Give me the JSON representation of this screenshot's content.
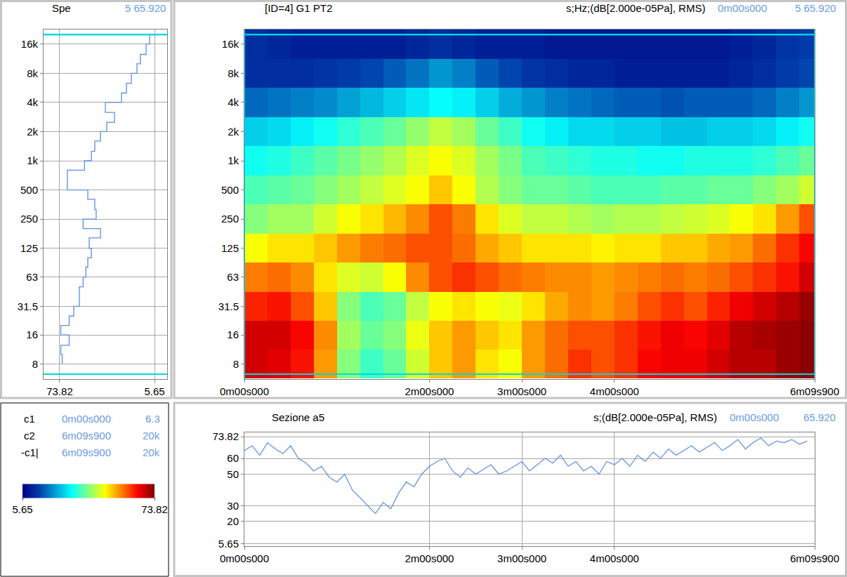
{
  "chart_data": [
    {
      "type": "line",
      "title": "Spe",
      "annotations": [
        "5 65.920"
      ],
      "y": [
        8,
        10,
        12.5,
        16,
        20,
        25,
        31.5,
        40,
        50,
        63,
        80,
        100,
        125,
        160,
        200,
        250,
        315,
        400,
        500,
        630,
        800,
        1000,
        1250,
        1600,
        2000,
        2500,
        3150,
        4000,
        5000,
        6300,
        8000,
        10000,
        12500,
        16000,
        20000
      ],
      "values": [
        72,
        73,
        67,
        73,
        67,
        63.7,
        59.7,
        59.7,
        57,
        55,
        53.6,
        51,
        52.6,
        44.5,
        57,
        47.6,
        48.6,
        53.6,
        68.3,
        68.3,
        56,
        51,
        48.6,
        44.5,
        40,
        34.4,
        41,
        29.4,
        25.8,
        22.3,
        18.3,
        15.8,
        11.7,
        9.2,
        5.7
      ],
      "color": "#5b8ee6",
      "line_style": "step",
      "xlim": [
        85.4,
        -3.4
      ],
      "xticks": [
        73.82,
        5.65
      ],
      "ylim": [
        5.6,
        22600
      ],
      "yticks": [
        8,
        16,
        31.5,
        63,
        125,
        250,
        500,
        {
          "value": 1000,
          "label": "1k"
        },
        {
          "value": 2000,
          "label": "2k"
        },
        {
          "value": 4000,
          "label": "4k"
        },
        {
          "value": 8000,
          "label": "8k"
        },
        {
          "value": 16000,
          "label": "16k"
        }
      ],
      "log": "y",
      "grid": true
    },
    {
      "type": "heatmap",
      "title": "[ID=4] G1 PT2",
      "subtitle": "s;Hz;(dB[2.000e-05Pa], RMS)",
      "annotations": [
        "0m00s000",
        "5 65.920"
      ],
      "x": [
        7.5,
        22.5,
        37.5,
        52.5,
        67.5,
        82.5,
        97.5,
        112.5,
        127.5,
        142.5,
        157.5,
        172.5,
        187.5,
        202.5,
        217.5,
        232.5,
        247.5,
        262.5,
        277.5,
        292.5,
        307.5,
        322.5,
        337.5,
        352.5,
        367.5
      ],
      "y": [
        8,
        16,
        31.5,
        63,
        125,
        250,
        500,
        1000,
        2000,
        4000,
        8000,
        16000
      ],
      "z": [
        [
          68,
          67,
          64,
          55,
          40,
          35,
          38,
          45,
          52,
          55,
          50,
          48,
          55,
          58,
          62,
          60,
          62,
          65,
          66,
          66,
          68,
          70,
          70,
          72,
          73
        ],
        [
          68,
          68,
          65,
          56,
          42,
          38,
          40,
          47,
          52,
          55,
          52,
          50,
          55,
          58,
          60,
          60,
          62,
          64,
          66,
          65,
          67,
          70,
          71,
          72,
          73
        ],
        [
          63,
          64,
          60,
          52,
          40,
          36,
          38,
          44,
          48,
          50,
          48,
          47,
          50,
          54,
          56,
          55,
          57,
          60,
          62,
          60,
          63,
          66,
          68,
          70,
          72
        ],
        [
          57,
          58,
          56,
          50,
          46,
          45,
          48,
          56,
          60,
          62,
          60,
          58,
          57,
          56,
          56,
          55,
          56,
          57,
          58,
          57,
          58,
          60,
          62,
          64,
          68
        ],
        [
          48,
          50,
          50,
          52,
          55,
          57,
          58,
          60,
          60,
          58,
          54,
          52,
          50,
          50,
          50,
          49,
          50,
          50,
          52,
          52,
          54,
          55,
          58,
          62,
          65
        ],
        [
          40,
          42,
          42,
          45,
          48,
          50,
          53,
          56,
          60,
          57,
          50,
          46,
          44,
          44,
          43,
          42,
          43,
          43,
          44,
          45,
          46,
          48,
          50,
          55,
          60
        ],
        [
          36,
          37,
          38,
          40,
          42,
          44,
          46,
          48,
          52,
          48,
          43,
          40,
          38,
          38,
          37,
          36,
          36,
          36,
          37,
          37,
          38,
          38,
          40,
          42,
          45
        ],
        [
          32,
          33,
          35,
          37,
          39,
          41,
          43,
          46,
          48,
          46,
          42,
          39,
          36,
          35,
          34,
          33,
          33,
          32,
          32,
          33,
          33,
          33,
          34,
          36,
          38
        ],
        [
          27,
          28,
          30,
          32,
          34,
          36,
          38,
          41,
          44,
          42,
          38,
          35,
          32,
          30,
          28,
          28,
          27,
          27,
          26,
          26,
          27,
          27,
          28,
          30,
          32
        ],
        [
          18,
          19,
          20,
          21,
          23,
          25,
          27,
          29,
          31,
          30,
          27,
          24,
          22,
          20,
          19,
          18,
          17,
          17,
          16,
          17,
          17,
          17,
          18,
          20,
          22
        ],
        [
          12,
          12,
          12,
          13,
          14,
          15,
          17,
          19,
          22,
          20,
          17,
          15,
          13,
          12,
          11,
          11,
          10,
          10,
          10,
          10,
          10,
          11,
          12,
          14,
          15
        ],
        [
          12,
          11,
          10,
          10,
          10,
          10,
          10,
          11,
          12,
          11,
          10,
          10,
          10,
          9,
          9,
          9,
          9,
          9,
          9,
          9,
          9,
          10,
          11,
          13,
          14
        ]
      ],
      "zlim": [
        5.65,
        73.82
      ],
      "zticks": [
        5.65,
        73.82
      ],
      "xlim": [
        0,
        369.9
      ],
      "xticks": [
        {
          "value": 0,
          "label": "0m00s000"
        },
        {
          "value": 120,
          "label": "2m00s000"
        },
        {
          "value": 180,
          "label": "3m00s000"
        },
        {
          "value": 240,
          "label": "4m00s000"
        },
        {
          "value": 369.9,
          "label": "6m09s900"
        }
      ],
      "ylim": [
        5.6,
        22600
      ],
      "yticks": [
        8,
        16,
        31.5,
        63,
        125,
        250,
        500,
        {
          "value": 1000,
          "label": "1k"
        },
        {
          "value": 2000,
          "label": "2k"
        },
        {
          "value": 4000,
          "label": "4k"
        },
        {
          "value": 8000,
          "label": "8k"
        },
        {
          "value": 16000,
          "label": "16k"
        }
      ],
      "log": "y",
      "grid": false,
      "cursors": [
        {
          "name": "c1",
          "time": {
            "value": 0,
            "label": "0m00s000"
          },
          "freq": {
            "value": 6.3,
            "label": "6.3"
          }
        },
        {
          "name": "c2",
          "time": {
            "value": 369.9,
            "label": "6m09s900"
          },
          "freq": {
            "value": 20000,
            "label": "20k"
          }
        },
        {
          "name": "-c1|",
          "time": {
            "value": 369.9,
            "label": "6m09s900"
          },
          "freq": {
            "value": 20000,
            "label": "20k"
          }
        }
      ]
    },
    {
      "type": "line",
      "title": "Sezione a5",
      "subtitle": "s;(dB[2.000e-05Pa], RMS)",
      "annotations": [
        "0m00s000",
        "65.920"
      ],
      "x": [
        0,
        5,
        10,
        15,
        20,
        25,
        30,
        35,
        40,
        45,
        50,
        55,
        60,
        65,
        70,
        75,
        80,
        85,
        90,
        95,
        100,
        105,
        110,
        115,
        120,
        125,
        130,
        135,
        140,
        145,
        150,
        155,
        160,
        165,
        170,
        175,
        180,
        185,
        190,
        195,
        200,
        205,
        210,
        215,
        220,
        225,
        230,
        235,
        240,
        245,
        250,
        255,
        260,
        265,
        270,
        275,
        280,
        285,
        290,
        295,
        300,
        305,
        310,
        315,
        320,
        325,
        330,
        335,
        340,
        345,
        350,
        355,
        360,
        365
      ],
      "values": [
        65,
        68,
        62,
        70,
        66,
        63,
        68,
        60,
        57,
        52,
        55,
        48,
        45,
        50,
        40,
        35,
        30,
        25,
        32,
        28,
        38,
        45,
        42,
        50,
        55,
        58,
        60,
        52,
        48,
        54,
        50,
        53,
        56,
        50,
        52,
        55,
        58,
        52,
        56,
        60,
        57,
        62,
        55,
        58,
        52,
        55,
        50,
        58,
        56,
        60,
        55,
        62,
        58,
        64,
        60,
        66,
        62,
        65,
        68,
        64,
        67,
        70,
        65,
        68,
        72,
        66,
        70,
        73,
        68,
        71,
        70,
        72,
        69,
        71
      ],
      "color": "#5b8ee6",
      "line_style": "solid",
      "xlim": [
        0,
        369.9
      ],
      "xticks": [
        {
          "value": 0,
          "label": "0m00s000"
        },
        {
          "value": 120,
          "label": "2m00s000"
        },
        {
          "value": 180,
          "label": "3m00s000"
        },
        {
          "value": 240,
          "label": "4m00s000"
        },
        {
          "value": 369.9,
          "label": "6m09s900"
        }
      ],
      "ylim": [
        4.3,
        76.5
      ],
      "yticks": [
        73.82,
        60,
        50,
        30,
        20,
        5.65
      ],
      "grid": true
    }
  ]
}
